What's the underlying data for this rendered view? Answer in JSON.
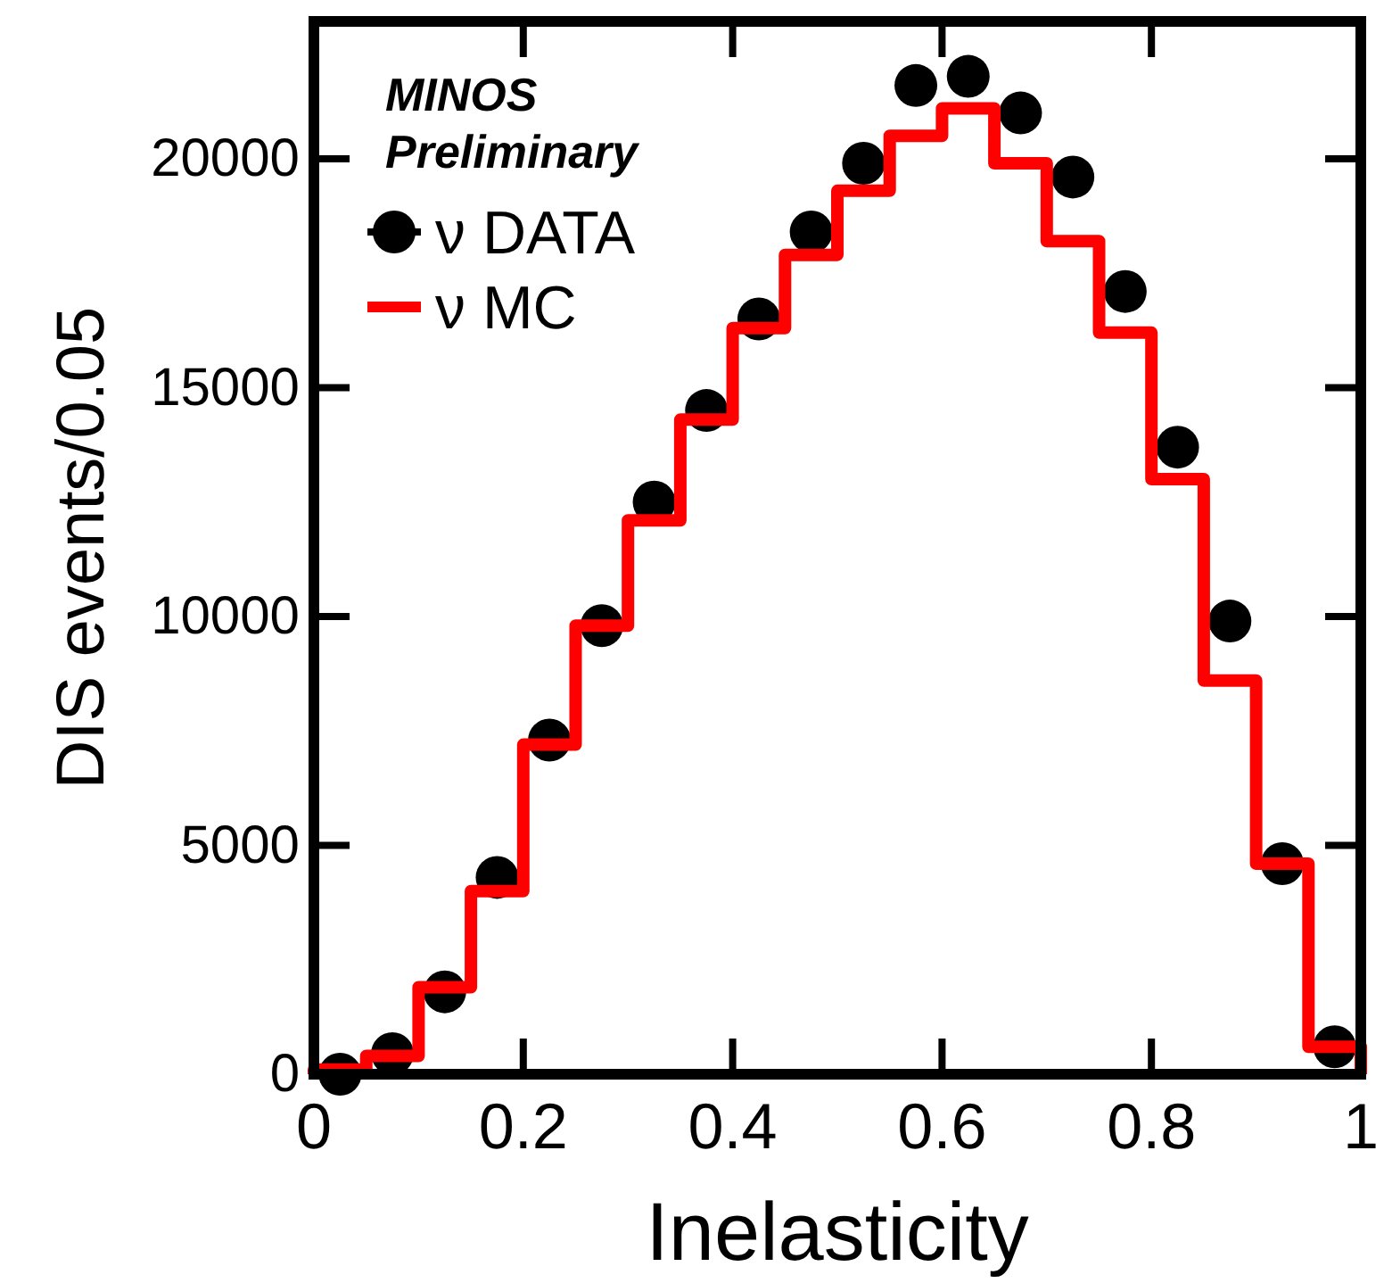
{
  "chart_data": {
    "type": "histogram",
    "xlabel": "Inelasticity",
    "ylabel": "DIS events/0.05",
    "annotations": [
      "MINOS",
      "Preliminary"
    ],
    "bins": [
      0,
      0.05,
      0.1,
      0.15,
      0.2,
      0.25,
      0.3,
      0.35,
      0.4,
      0.45,
      0.5,
      0.55,
      0.6,
      0.65,
      0.7,
      0.75,
      0.8,
      0.85,
      0.9,
      0.95,
      1
    ],
    "series": [
      {
        "name": "ν DATA",
        "type": "scatter",
        "marker": "circle",
        "color": "#000000",
        "x": [
          0.025,
          0.075,
          0.125,
          0.175,
          0.225,
          0.275,
          0.325,
          0.375,
          0.425,
          0.475,
          0.525,
          0.575,
          0.625,
          0.675,
          0.725,
          0.775,
          0.825,
          0.875,
          0.925,
          0.975
        ],
        "values": [
          0,
          450,
          1800,
          4300,
          7300,
          9800,
          12500,
          14500,
          16500,
          18400,
          19900,
          21600,
          21800,
          21000,
          19600,
          17100,
          13700,
          9900,
          4600,
          600
        ]
      },
      {
        "name": "ν MC",
        "color": "#ff0000",
        "values": [
          100,
          400,
          1900,
          4000,
          7200,
          9800,
          12100,
          14300,
          16300,
          17900,
          19300,
          20500,
          21100,
          19900,
          18200,
          16200,
          13000,
          8600,
          4600,
          600
        ]
      }
    ],
    "xlim": [
      0,
      1
    ],
    "ylim": [
      0,
      23000
    ],
    "xticks": [
      0,
      0.2,
      0.4,
      0.6,
      0.8,
      1
    ],
    "yticks": [
      0,
      5000,
      10000,
      15000,
      20000
    ],
    "legend": "top left",
    "grid": false
  }
}
